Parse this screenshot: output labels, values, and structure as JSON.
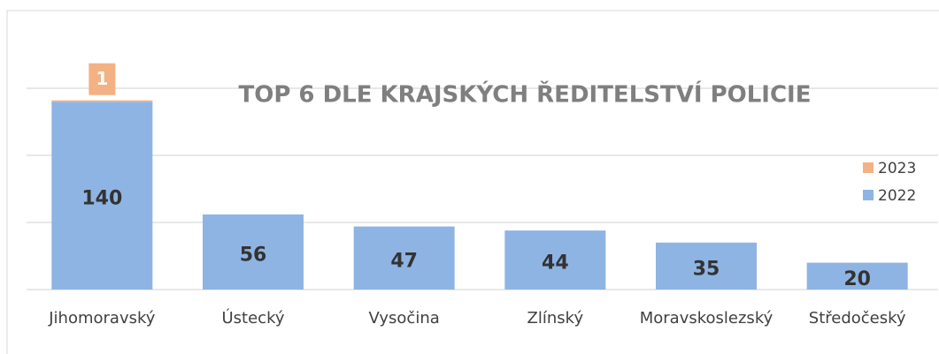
{
  "chart_data": {
    "type": "stacked_bar",
    "title": "TOP 6 DLE KRAJSKÝCH ŘEDITELSTVÍ POLICIE",
    "categories": [
      "Jihomoravský",
      "Ústecký",
      "Vysočina",
      "Zlínský",
      "Moravskoslezský",
      "Středočeský"
    ],
    "series": [
      {
        "name": "2022",
        "color": "#8eb4e3",
        "values": [
          140,
          56,
          47,
          44,
          35,
          20
        ]
      },
      {
        "name": "2023",
        "color": "#f4b183",
        "values": [
          1,
          null,
          null,
          null,
          null,
          null
        ]
      }
    ],
    "ylim": [
      0,
      150
    ],
    "yticks": [
      0,
      50,
      100,
      150
    ],
    "grid": true,
    "legend": "right"
  }
}
